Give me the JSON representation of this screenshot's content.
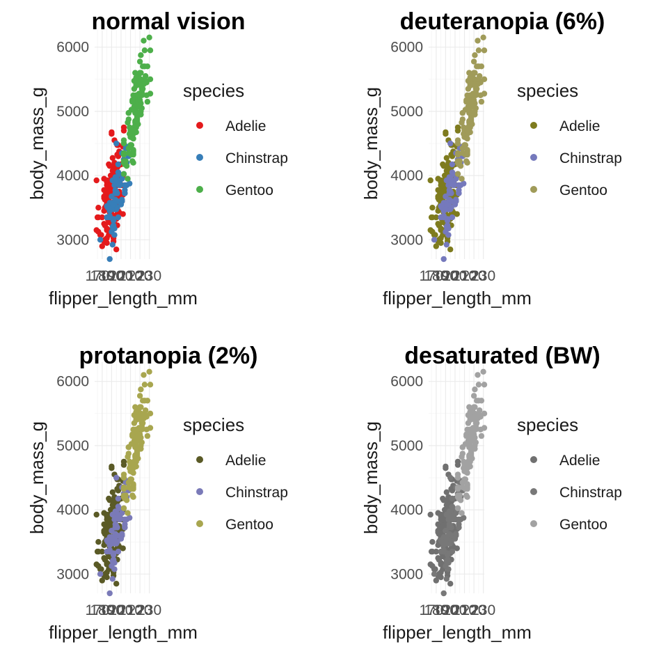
{
  "chart_data": [
    {
      "type": "scatter",
      "title": "normal vision",
      "xlabel": "flipper_length_mm",
      "ylabel": "body_mass_g",
      "xticks": [
        "170",
        "180",
        "190",
        "200",
        "210",
        "220",
        "230"
      ],
      "yticks": [
        "3000",
        "4000",
        "5000",
        "6000"
      ],
      "xlim": [
        172,
        231
      ],
      "ylim": [
        2700,
        6300
      ],
      "grid": true,
      "legend": {
        "title": "species",
        "position": "right"
      },
      "series": [
        {
          "name": "Adelie",
          "color": "#E41A1C"
        },
        {
          "name": "Chinstrap",
          "color": "#377EB8"
        },
        {
          "name": "Gentoo",
          "color": "#4DAF4A"
        }
      ]
    },
    {
      "type": "scatter",
      "title": "deuteranopia (6%)",
      "xlabel": "flipper_length_mm",
      "ylabel": "body_mass_g",
      "xticks": [
        "170",
        "180",
        "190",
        "200",
        "210",
        "220",
        "230"
      ],
      "yticks": [
        "3000",
        "4000",
        "5000",
        "6000"
      ],
      "xlim": [
        172,
        231
      ],
      "ylim": [
        2700,
        6300
      ],
      "grid": true,
      "legend": {
        "title": "species",
        "position": "right"
      },
      "series": [
        {
          "name": "Adelie",
          "color": "#7E7B1E"
        },
        {
          "name": "Chinstrap",
          "color": "#7579BC"
        },
        {
          "name": "Gentoo",
          "color": "#A09B59"
        }
      ]
    },
    {
      "type": "scatter",
      "title": "protanopia (2%)",
      "xlabel": "flipper_length_mm",
      "ylabel": "body_mass_g",
      "xticks": [
        "170",
        "180",
        "190",
        "200",
        "210",
        "220",
        "230"
      ],
      "yticks": [
        "3000",
        "4000",
        "5000",
        "6000"
      ],
      "xlim": [
        172,
        231
      ],
      "ylim": [
        2700,
        6300
      ],
      "grid": true,
      "legend": {
        "title": "species",
        "position": "right"
      },
      "series": [
        {
          "name": "Adelie",
          "color": "#5A5A26"
        },
        {
          "name": "Chinstrap",
          "color": "#7A7AB8"
        },
        {
          "name": "Gentoo",
          "color": "#A8A64F"
        }
      ]
    },
    {
      "type": "scatter",
      "title": "desaturated (BW)",
      "xlabel": "flipper_length_mm",
      "ylabel": "body_mass_g",
      "xticks": [
        "170",
        "180",
        "190",
        "200",
        "210",
        "220",
        "230"
      ],
      "yticks": [
        "3000",
        "4000",
        "5000",
        "6000"
      ],
      "xlim": [
        172,
        231
      ],
      "ylim": [
        2700,
        6300
      ],
      "grid": true,
      "legend": {
        "title": "species",
        "position": "right"
      },
      "series": [
        {
          "name": "Adelie",
          "color": "#707070"
        },
        {
          "name": "Chinstrap",
          "color": "#787878"
        },
        {
          "name": "Gentoo",
          "color": "#A2A2A2"
        }
      ]
    }
  ]
}
